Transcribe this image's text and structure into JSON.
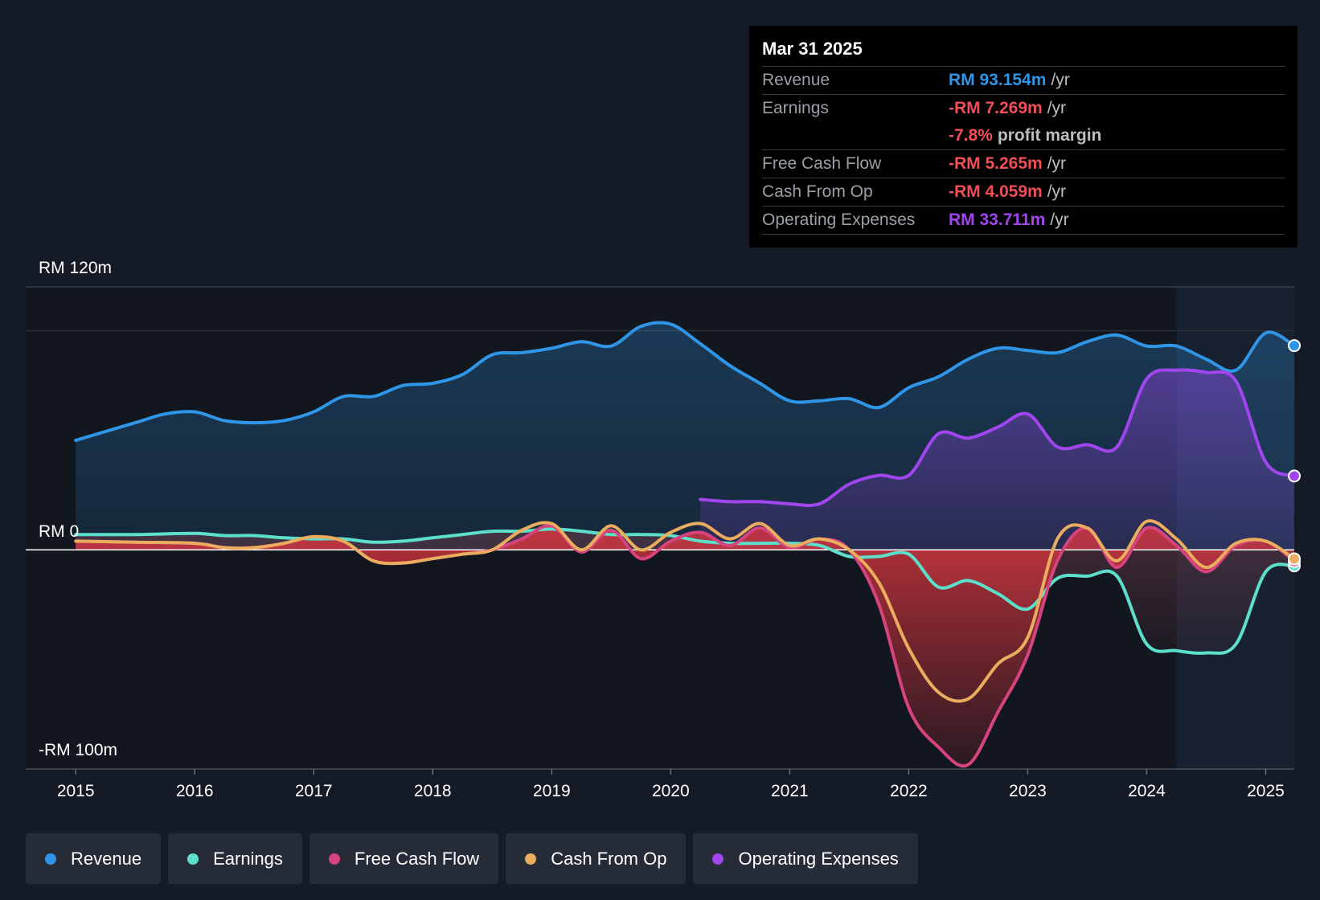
{
  "colors": {
    "revenue": "#2f95e6",
    "earnings": "#5de0cb",
    "free_cash_flow": "#d7437e",
    "cash_from_op": "#eaac5d",
    "operating_expenses": "#a146ef",
    "negative": "#f04f58"
  },
  "tooltip": {
    "date": "Mar 31 2025",
    "rows": [
      {
        "label": "Revenue",
        "value": "RM 93.154m",
        "unit": "/yr"
      },
      {
        "label": "Earnings",
        "value": "-RM 7.269m",
        "unit": "/yr"
      },
      {
        "label": "",
        "value": "-7.8%",
        "unit": "profit margin"
      },
      {
        "label": "Free Cash Flow",
        "value": "-RM 5.265m",
        "unit": "/yr"
      },
      {
        "label": "Cash From Op",
        "value": "-RM 4.059m",
        "unit": "/yr"
      },
      {
        "label": "Operating Expenses",
        "value": "RM 33.711m",
        "unit": "/yr"
      }
    ]
  },
  "legend": [
    {
      "label": "Revenue",
      "color": "#2f95e6"
    },
    {
      "label": "Earnings",
      "color": "#5de0cb"
    },
    {
      "label": "Free Cash Flow",
      "color": "#d7437e"
    },
    {
      "label": "Cash From Op",
      "color": "#eaac5d"
    },
    {
      "label": "Operating Expenses",
      "color": "#a146ef"
    }
  ],
  "chart_data": {
    "type": "area",
    "title": "",
    "y_labels": {
      "top": "RM 120m",
      "zero": "RM 0",
      "bottom": "-RM 100m"
    },
    "ylim": [
      -100,
      120
    ],
    "xlim": [
      2014.58,
      2025.24
    ],
    "past_data_start": 2024.25,
    "x_ticks": [
      2015,
      2016,
      2017,
      2018,
      2019,
      2020,
      2021,
      2022,
      2023,
      2024,
      2025
    ],
    "x_tick_labels": [
      "2015",
      "2016",
      "2017",
      "2018",
      "2019",
      "2020",
      "2021",
      "2022",
      "2023",
      "2024",
      "2025"
    ],
    "series": [
      {
        "name": "Revenue",
        "key": "revenue",
        "x": [
          2015.0,
          2015.5,
          2015.75,
          2016.0,
          2016.25,
          2016.5,
          2016.75,
          2017.0,
          2017.25,
          2017.5,
          2017.75,
          2018.0,
          2018.25,
          2018.5,
          2018.75,
          2019.0,
          2019.25,
          2019.5,
          2019.75,
          2020.0,
          2020.25,
          2020.5,
          2020.75,
          2021.0,
          2021.25,
          2021.5,
          2021.75,
          2022.0,
          2022.25,
          2022.5,
          2022.75,
          2023.0,
          2023.25,
          2023.5,
          2023.75,
          2024.0,
          2024.25,
          2024.5,
          2024.75,
          2025.0,
          2025.24
        ],
        "y": [
          50,
          58,
          62,
          63,
          59,
          58,
          59,
          63,
          70,
          70,
          75,
          76,
          80,
          89,
          90,
          92,
          95,
          93,
          102,
          103,
          94,
          84,
          76,
          68,
          68,
          69,
          65,
          74,
          79,
          87,
          92,
          91,
          90,
          95,
          98,
          93,
          93,
          87,
          82,
          99,
          93.2
        ]
      },
      {
        "name": "Operating Expenses",
        "key": "operating_expenses",
        "x": [
          2020.25,
          2020.5,
          2020.75,
          2021.0,
          2021.25,
          2021.5,
          2021.75,
          2022.0,
          2022.25,
          2022.5,
          2022.75,
          2023.0,
          2023.25,
          2023.5,
          2023.75,
          2024.0,
          2024.25,
          2024.5,
          2024.75,
          2025.0,
          2025.24
        ],
        "y": [
          23,
          22,
          22,
          21,
          21,
          30,
          34,
          34,
          53,
          51,
          56,
          62,
          47,
          48,
          47,
          78,
          82,
          81,
          77,
          40,
          33.7
        ]
      },
      {
        "name": "Earnings",
        "key": "earnings",
        "x": [
          2015.0,
          2015.5,
          2016.0,
          2016.25,
          2016.5,
          2016.75,
          2017.0,
          2017.25,
          2017.5,
          2017.75,
          2018.0,
          2018.25,
          2018.5,
          2018.75,
          2019.0,
          2019.25,
          2019.5,
          2019.75,
          2020.0,
          2020.25,
          2020.5,
          2020.75,
          2021.0,
          2021.25,
          2021.5,
          2021.75,
          2022.0,
          2022.25,
          2022.5,
          2022.75,
          2023.0,
          2023.25,
          2023.5,
          2023.75,
          2024.0,
          2024.25,
          2024.5,
          2024.75,
          2025.0,
          2025.24
        ],
        "y": [
          7,
          7,
          7.5,
          6.5,
          6.5,
          5.5,
          5,
          5,
          3.5,
          4,
          5.5,
          7,
          8.5,
          8.5,
          9.5,
          8.5,
          7,
          7,
          6.5,
          4,
          3,
          3,
          3,
          2,
          -3,
          -3,
          -2,
          -17,
          -14,
          -20,
          -27,
          -13,
          -12,
          -12,
          -43,
          -46,
          -47,
          -43,
          -10,
          -7.3
        ]
      },
      {
        "name": "Free Cash Flow",
        "key": "free_cash_flow",
        "x": [
          2015.0,
          2015.5,
          2016.0,
          2016.25,
          2016.5,
          2016.75,
          2017.0,
          2017.25,
          2017.5,
          2017.75,
          2018.0,
          2018.25,
          2018.5,
          2018.75,
          2019.0,
          2019.25,
          2019.5,
          2019.75,
          2020.0,
          2020.25,
          2020.5,
          2020.75,
          2021.0,
          2021.25,
          2021.5,
          2021.75,
          2022.0,
          2022.25,
          2022.5,
          2022.75,
          2023.0,
          2023.25,
          2023.5,
          2023.75,
          2024.0,
          2024.25,
          2024.5,
          2024.75,
          2025.0,
          2025.24
        ],
        "y": [
          4,
          3.5,
          3,
          1,
          1,
          3,
          6,
          4,
          -5,
          -6,
          -4,
          -2,
          0,
          5,
          11,
          -1,
          9,
          -4,
          4,
          8,
          2,
          10,
          1,
          5,
          0,
          -25,
          -72,
          -90,
          -98,
          -74,
          -48,
          -5,
          10,
          -8,
          10,
          2,
          -10,
          2,
          4,
          -5.3
        ]
      },
      {
        "name": "Cash From Op",
        "key": "cash_from_op",
        "x": [
          2015.0,
          2015.5,
          2016.0,
          2016.25,
          2016.5,
          2016.75,
          2017.0,
          2017.25,
          2017.5,
          2017.75,
          2018.0,
          2018.25,
          2018.5,
          2018.75,
          2019.0,
          2019.25,
          2019.5,
          2019.75,
          2020.0,
          2020.25,
          2020.5,
          2020.75,
          2021.0,
          2021.25,
          2021.5,
          2021.75,
          2022.0,
          2022.25,
          2022.5,
          2022.75,
          2023.0,
          2023.25,
          2023.5,
          2023.75,
          2024.0,
          2024.25,
          2024.5,
          2024.75,
          2025.0,
          2025.24
        ],
        "y": [
          4,
          3.5,
          3,
          1,
          1,
          3,
          6,
          4,
          -5,
          -6,
          -4,
          -2,
          0,
          9,
          12,
          0,
          11,
          0,
          8,
          12,
          5,
          12,
          2,
          5,
          0,
          -15,
          -45,
          -65,
          -68,
          -52,
          -40,
          5,
          10,
          -5,
          13,
          5,
          -8,
          3,
          4,
          -4.1
        ]
      }
    ]
  }
}
